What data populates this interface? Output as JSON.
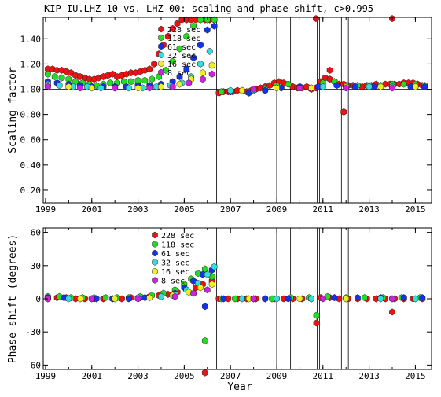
{
  "title": "KIP-IU.LHZ-10 vs. LHZ-00: scaling and phase shift, c>0.995",
  "xlabel": "Year",
  "colors": {
    "228 sec": "#ee1111",
    "118 sec": "#22dd22",
    "61 sec": "#1133ee",
    "32 sec": "#33dddd",
    "16 sec": "#eeee22",
    "8 sec": "#cc22dd"
  },
  "chart_data": [
    {
      "type": "scatter",
      "title": "KIP-IU.LHZ-10 vs. LHZ-00: scaling and phase shift, c>0.995",
      "xlabel": "",
      "ylabel": "Scaling factor",
      "xlim": [
        1998.9,
        2015.7
      ],
      "ylim": [
        0.1,
        1.57
      ],
      "x_ticks": [
        "1999",
        "2001",
        "2003",
        "2005",
        "2007",
        "2009",
        "2011",
        "2013",
        "2015"
      ],
      "x_tick_values": [
        1999,
        2001,
        2003,
        2005,
        2007,
        2009,
        2011,
        2013,
        2015
      ],
      "y_ticks": [
        "0.20",
        "0.40",
        "0.60",
        "0.80",
        "1.00",
        "1.20",
        "1.40"
      ],
      "y_tick_values": [
        0.2,
        0.4,
        0.6,
        0.8,
        1.0,
        1.2,
        1.4
      ],
      "reference_line": 1.0,
      "event_lines": [
        2006.4,
        2009.0,
        2009.6,
        2010.75,
        2010.85,
        2011.8,
        2012.1
      ],
      "legend": [
        "228 sec",
        "118 sec",
        "61 sec",
        "32 sec",
        "16 sec",
        "8 sec"
      ],
      "series": [
        {
          "name": "228 sec",
          "x": [
            1999.1,
            1999.3,
            1999.5,
            1999.7,
            1999.9,
            2000.1,
            2000.3,
            2000.5,
            2000.7,
            2000.9,
            2001.1,
            2001.3,
            2001.5,
            2001.7,
            2001.9,
            2002.1,
            2002.3,
            2002.5,
            2002.7,
            2002.9,
            2003.1,
            2003.3,
            2003.5,
            2003.7,
            2003.9,
            2004.1,
            2004.3,
            2004.5,
            2004.7,
            2004.9,
            2005.1,
            2005.3,
            2005.5,
            2005.7,
            2005.9,
            2006.1,
            2006.3,
            2006.5,
            2006.7,
            2006.9,
            2007.1,
            2007.3,
            2007.5,
            2007.7,
            2007.9,
            2008.1,
            2008.3,
            2008.5,
            2008.7,
            2008.9,
            2009.1,
            2009.3,
            2009.5,
            2009.7,
            2009.9,
            2010.1,
            2010.3,
            2010.5,
            2010.7,
            2010.9,
            2011.1,
            2011.3,
            2011.5,
            2011.7,
            2011.9,
            2012.1,
            2012.3,
            2012.5,
            2012.7,
            2012.9,
            2013.1,
            2013.3,
            2013.5,
            2013.7,
            2013.9,
            2014.1,
            2014.3,
            2014.5,
            2014.7,
            2014.9,
            2015.1,
            2015.3,
            2010.7,
            2011.3,
            2011.9,
            2014.0
          ],
          "y": [
            1.16,
            1.16,
            1.15,
            1.15,
            1.14,
            1.13,
            1.11,
            1.1,
            1.09,
            1.08,
            1.08,
            1.09,
            1.1,
            1.11,
            1.12,
            1.1,
            1.11,
            1.12,
            1.13,
            1.13,
            1.14,
            1.15,
            1.16,
            1.2,
            1.28,
            1.35,
            1.42,
            1.48,
            1.52,
            1.55,
            1.55,
            1.55,
            1.55,
            1.55,
            1.55,
            1.55,
            1.55,
            0.97,
            0.98,
            0.98,
            0.98,
            0.99,
            0.99,
            0.98,
            0.99,
            1.0,
            1.01,
            1.02,
            1.03,
            1.05,
            1.06,
            1.05,
            1.04,
            1.02,
            1.01,
            1.01,
            1.02,
            1.0,
            1.01,
            1.06,
            1.09,
            1.15,
            1.06,
            1.04,
            1.04,
            1.03,
            1.03,
            1.03,
            1.02,
            1.03,
            1.03,
            1.04,
            1.03,
            1.04,
            1.04,
            1.04,
            1.04,
            1.05,
            1.05,
            1.05,
            1.04,
            1.03,
            1.56,
            1.08,
            0.82,
            1.56
          ]
        },
        {
          "name": "118 sec",
          "x": [
            1999.1,
            1999.4,
            1999.7,
            2000.0,
            2000.3,
            2000.6,
            2000.9,
            2001.2,
            2001.5,
            2001.8,
            2002.1,
            2002.4,
            2002.7,
            2003.0,
            2003.3,
            2003.6,
            2003.9,
            2004.2,
            2004.5,
            2004.8,
            2005.1,
            2005.4,
            2005.7,
            2006.0,
            2006.3,
            2006.6,
            2007.0,
            2007.5,
            2008.0,
            2008.5,
            2009.0,
            2009.5,
            2010.0,
            2010.5,
            2011.0,
            2011.5,
            2012.0,
            2012.5,
            2013.0,
            2013.5,
            2014.0,
            2014.5,
            2015.0,
            2015.4
          ],
          "y": [
            1.12,
            1.1,
            1.09,
            1.08,
            1.06,
            1.05,
            1.04,
            1.03,
            1.04,
            1.05,
            1.05,
            1.06,
            1.06,
            1.07,
            1.07,
            1.08,
            1.1,
            1.15,
            1.22,
            1.32,
            1.42,
            1.5,
            1.55,
            1.55,
            1.55,
            0.98,
            0.98,
            0.99,
            0.99,
            1.0,
            1.03,
            1.04,
            1.02,
            1.01,
            1.05,
            1.06,
            1.03,
            1.03,
            1.03,
            1.03,
            1.04,
            1.04,
            1.04,
            1.03
          ]
        },
        {
          "name": "61 sec",
          "x": [
            1999.1,
            1999.5,
            2000.0,
            2000.5,
            2001.0,
            2001.5,
            2002.0,
            2002.5,
            2003.0,
            2003.5,
            2004.0,
            2004.5,
            2004.8,
            2005.1,
            2005.4,
            2005.7,
            2006.0,
            2006.3,
            2007.0,
            2007.8,
            2008.5,
            2009.2,
            2010.0,
            2010.8,
            2011.6,
            2012.4,
            2013.2,
            2014.0,
            2014.8,
            2015.4
          ],
          "y": [
            1.06,
            1.05,
            1.04,
            1.03,
            1.02,
            1.02,
            1.02,
            1.02,
            1.03,
            1.03,
            1.04,
            1.06,
            1.1,
            1.16,
            1.25,
            1.35,
            1.47,
            1.5,
            0.98,
            0.97,
            0.99,
            1.01,
            1.02,
            1.02,
            1.03,
            1.02,
            1.02,
            1.02,
            1.02,
            1.02
          ]
        },
        {
          "name": "32 sec",
          "x": [
            1999.1,
            1999.6,
            2000.2,
            2000.8,
            2001.4,
            2002.0,
            2002.6,
            2003.2,
            2003.8,
            2004.4,
            2004.9,
            2005.3,
            2005.7,
            2006.1,
            2007.0,
            2008.0,
            2009.0,
            2010.0,
            2011.0,
            2012.0,
            2013.0,
            2014.0,
            2015.0
          ],
          "y": [
            1.04,
            1.03,
            1.02,
            1.02,
            1.01,
            1.01,
            1.01,
            1.01,
            1.02,
            1.03,
            1.05,
            1.1,
            1.2,
            1.3,
            0.99,
            0.99,
            1.01,
            1.01,
            1.02,
            1.02,
            1.02,
            1.02,
            1.02
          ]
        },
        {
          "name": "16 sec",
          "x": [
            1999.1,
            2000.0,
            2001.0,
            2002.0,
            2003.0,
            2004.0,
            2004.8,
            2005.3,
            2005.8,
            2006.2,
            2007.5,
            2009.0,
            2010.5,
            2012.0,
            2013.5,
            2015.0
          ],
          "y": [
            1.03,
            1.02,
            1.01,
            1.01,
            1.01,
            1.02,
            1.04,
            1.08,
            1.13,
            1.19,
            0.99,
            1.01,
            1.01,
            1.02,
            1.02,
            1.02
          ]
        },
        {
          "name": "8 sec",
          "x": [
            1999.1,
            2000.5,
            2002.0,
            2003.5,
            2004.5,
            2005.2,
            2005.8,
            2006.2,
            2008.0,
            2010.0,
            2012.0,
            2014.0
          ],
          "y": [
            1.02,
            1.01,
            1.01,
            1.01,
            1.02,
            1.05,
            1.08,
            1.12,
            1.0,
            1.01,
            1.01,
            1.01
          ]
        }
      ]
    },
    {
      "type": "scatter",
      "title": "",
      "xlabel": "Year",
      "ylabel": "Phase shift (degrees)",
      "xlim": [
        1998.9,
        2015.7
      ],
      "ylim": [
        -64,
        64
      ],
      "x_ticks": [
        "1999",
        "2001",
        "2003",
        "2005",
        "2007",
        "2009",
        "2011",
        "2013",
        "2015"
      ],
      "x_tick_values": [
        1999,
        2001,
        2003,
        2005,
        2007,
        2009,
        2011,
        2013,
        2015
      ],
      "y_ticks": [
        "-60",
        "-30",
        "0",
        "30",
        "60"
      ],
      "y_tick_values": [
        -60,
        -30,
        0,
        30,
        60
      ],
      "event_lines": [
        2006.4,
        2009.0,
        2009.6,
        2010.75,
        2010.85,
        2011.8,
        2012.1
      ],
      "legend": [
        "228 sec",
        "118 sec",
        "61 sec",
        "32 sec",
        "16 sec",
        "8 sec"
      ],
      "series": [
        {
          "name": "228 sec",
          "x": [
            1999.1,
            1999.5,
            1999.9,
            2000.3,
            2000.7,
            2001.1,
            2001.5,
            2001.9,
            2002.3,
            2002.7,
            2003.1,
            2003.5,
            2003.9,
            2004.3,
            2004.7,
            2005.1,
            2005.5,
            2005.8,
            2006.2,
            2006.5,
            2006.9,
            2007.3,
            2007.7,
            2008.1,
            2008.5,
            2008.9,
            2009.3,
            2009.7,
            2010.1,
            2010.5,
            2010.9,
            2011.3,
            2011.7,
            2012.1,
            2012.5,
            2012.9,
            2013.3,
            2013.7,
            2014.1,
            2014.5,
            2014.9,
            2015.3,
            2010.72,
            2005.9,
            2014.0
          ],
          "y": [
            1,
            1,
            1,
            0,
            0,
            0,
            0,
            0,
            0,
            1,
            1,
            2,
            3,
            4,
            6,
            8,
            10,
            13,
            16,
            0,
            0,
            0,
            0,
            0,
            0,
            0,
            0,
            0,
            0,
            0,
            1,
            1,
            0,
            0,
            0,
            0,
            0,
            0,
            0,
            0,
            0,
            0,
            -22,
            -67,
            -12
          ]
        },
        {
          "name": "118 sec",
          "x": [
            1999.1,
            1999.6,
            2000.1,
            2000.6,
            2001.1,
            2001.6,
            2002.1,
            2002.6,
            2003.1,
            2003.6,
            2004.1,
            2004.6,
            2005.0,
            2005.3,
            2005.6,
            2005.9,
            2006.2,
            2006.6,
            2007.2,
            2008.0,
            2008.8,
            2009.6,
            2010.4,
            2011.2,
            2012.0,
            2012.8,
            2013.6,
            2014.4,
            2015.2,
            2010.72,
            2005.9
          ],
          "y": [
            2,
            2,
            1,
            1,
            1,
            1,
            1,
            1,
            2,
            3,
            5,
            8,
            13,
            18,
            23,
            27,
            20,
            0,
            0,
            0,
            0,
            1,
            1,
            2,
            1,
            1,
            1,
            1,
            1,
            -15,
            -38
          ]
        },
        {
          "name": "61 sec",
          "x": [
            1999.1,
            1999.8,
            2000.5,
            2001.2,
            2001.9,
            2002.6,
            2003.3,
            2004.0,
            2004.6,
            2005.0,
            2005.4,
            2005.8,
            2006.2,
            2006.7,
            2007.5,
            2008.5,
            2009.5,
            2010.5,
            2011.5,
            2012.5,
            2013.5,
            2014.5,
            2015.3,
            2005.9
          ],
          "y": [
            1,
            1,
            0,
            0,
            0,
            0,
            1,
            2,
            5,
            10,
            16,
            22,
            26,
            0,
            0,
            0,
            0,
            0,
            1,
            1,
            1,
            1,
            1,
            -7
          ]
        },
        {
          "name": "32 sec",
          "x": [
            1999.1,
            2000.0,
            2001.0,
            2002.0,
            2003.0,
            2004.0,
            2004.6,
            2005.1,
            2005.6,
            2006.0,
            2006.3,
            2007.5,
            2009.0,
            2010.5,
            2012.0,
            2013.5,
            2015.0
          ],
          "y": [
            0,
            0,
            0,
            0,
            1,
            2,
            4,
            8,
            14,
            22,
            29,
            0,
            0,
            0,
            0,
            0,
            0
          ]
        },
        {
          "name": "16 sec",
          "x": [
            1999.1,
            2000.5,
            2002.0,
            2003.5,
            2004.5,
            2005.2,
            2005.7,
            2006.2,
            2007.8,
            2010.0,
            2012.0,
            2014.0
          ],
          "y": [
            0,
            0,
            0,
            1,
            3,
            6,
            10,
            13,
            0,
            0,
            0,
            0
          ]
        },
        {
          "name": "8 sec",
          "x": [
            1999.1,
            2001.0,
            2003.0,
            2004.6,
            2005.4,
            2006.0,
            2008.0,
            2011.0,
            2014.0
          ],
          "y": [
            0,
            0,
            0,
            2,
            5,
            8,
            0,
            0,
            0
          ]
        }
      ]
    }
  ]
}
